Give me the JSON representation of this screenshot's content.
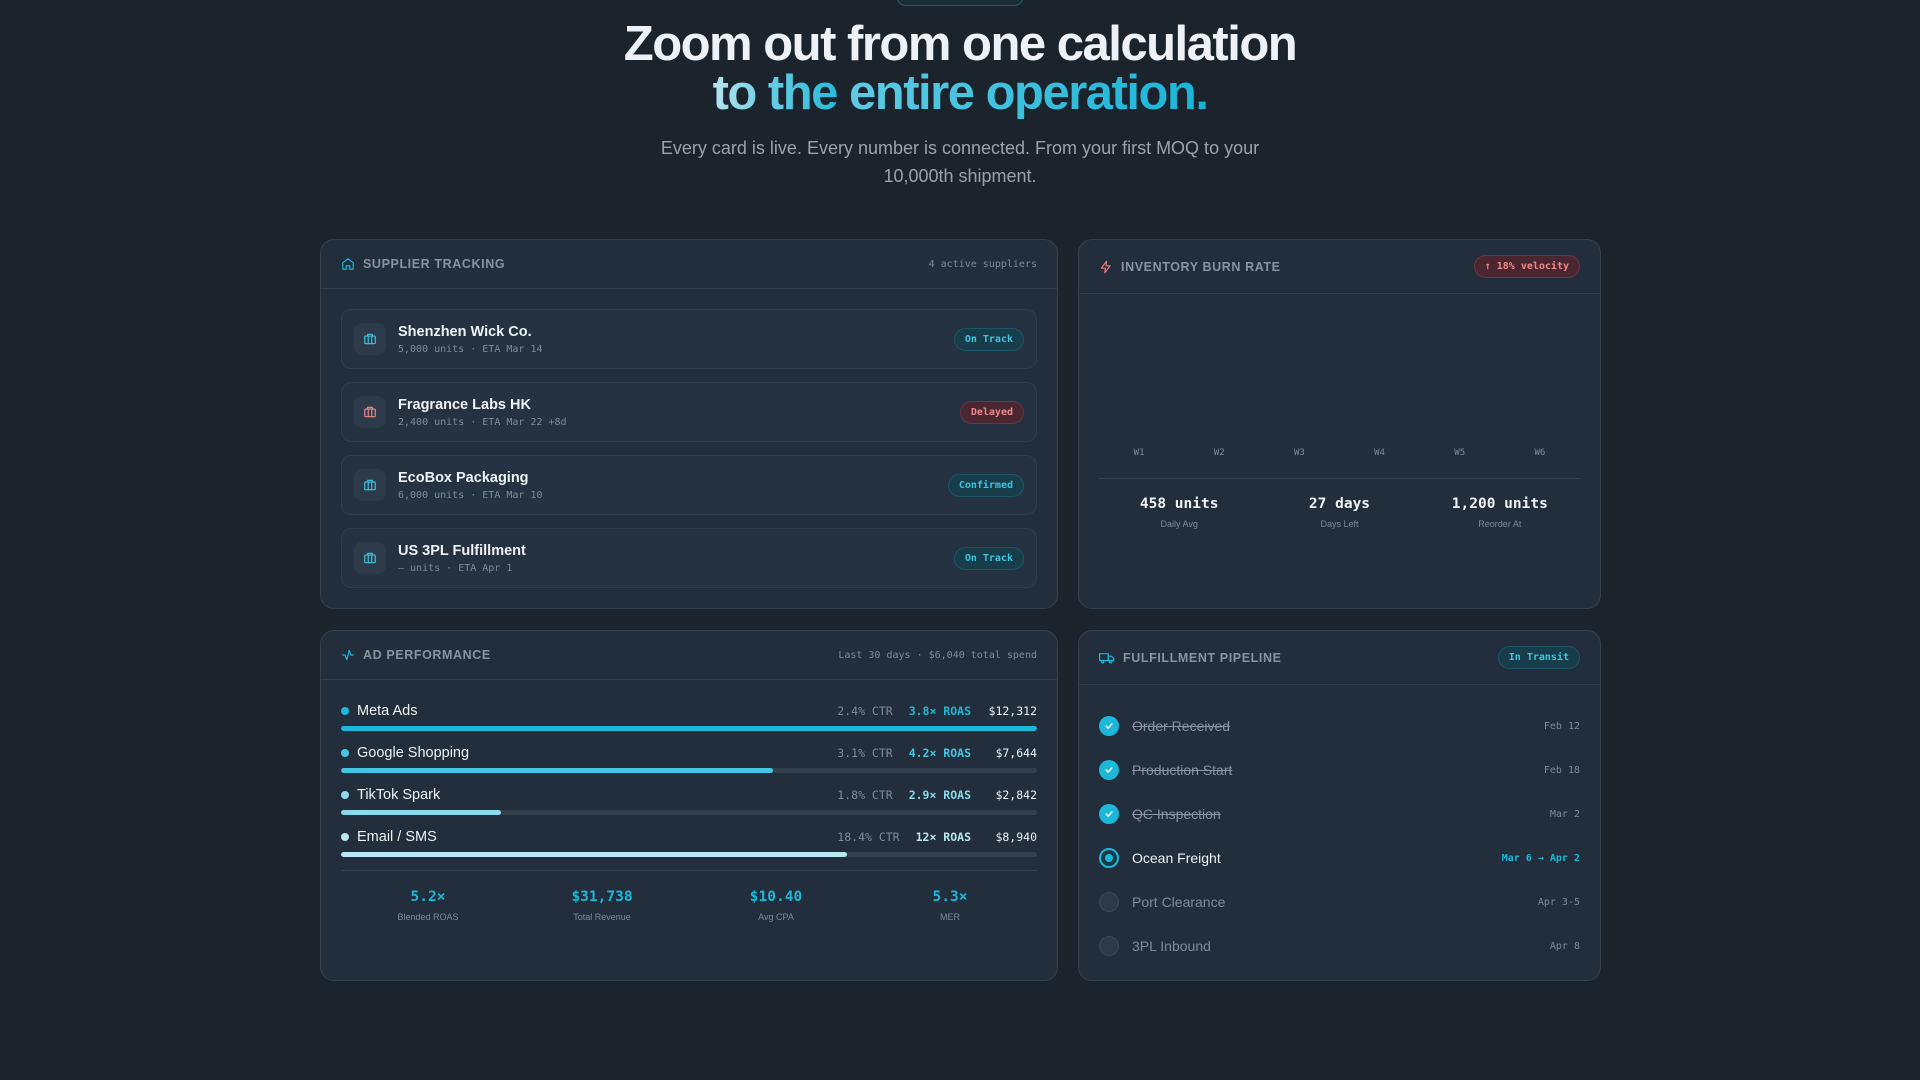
{
  "hero": {
    "title_line1": "Zoom out from one calculation",
    "title_line2_prefix": "to the ",
    "title_line2_highlight": "entire operation.",
    "subtitle": "Every card is live. Every number is connected. From your first MOQ to your 10,000th shipment."
  },
  "supplier": {
    "title": "SUPPLIER TRACKING",
    "meta": "4 active suppliers",
    "icon": "home-icon",
    "rows": [
      {
        "name": "Shenzhen Wick Co.",
        "sub": "5,000 units · ETA Mar 14",
        "status": "On Track",
        "tone": "teal",
        "icon_color": "#3ec5e2"
      },
      {
        "name": "Fragrance Labs HK",
        "sub": "2,400 units · ETA Mar 22 +8d",
        "status": "Delayed",
        "tone": "red",
        "icon_color": "#f08a8a"
      },
      {
        "name": "EcoBox Packaging",
        "sub": "6,000 units · ETA Mar 10",
        "status": "Confirmed",
        "tone": "teal",
        "icon_color": "#3ec5e2"
      },
      {
        "name": "US 3PL Fulfillment",
        "sub": "— units · ETA Apr 1",
        "status": "On Track",
        "tone": "teal",
        "icon_color": "#3ec5e2"
      }
    ]
  },
  "inventory": {
    "title": "INVENTORY BURN RATE",
    "badge": "↑ 18% velocity",
    "icon": "bolt-icon",
    "weeks": [
      "W1",
      "W2",
      "W3",
      "W4",
      "W5",
      "W6"
    ],
    "stats": [
      {
        "value": "458 units",
        "label": "Daily Avg"
      },
      {
        "value": "27 days",
        "label": "Days Left"
      },
      {
        "value": "1,200 units",
        "label": "Reorder At"
      }
    ]
  },
  "ads": {
    "title": "AD PERFORMANCE",
    "meta": "Last 30 days · $6,040 total spend",
    "icon": "activity-icon",
    "channels": [
      {
        "name": "Meta Ads",
        "ctr": "2.4% CTR",
        "roas": "3.8× ROAS",
        "spend": "$12,312",
        "fill": 1.0,
        "color": "#1bb8da"
      },
      {
        "name": "Google Shopping",
        "ctr": "3.1% CTR",
        "roas": "4.2× ROAS",
        "spend": "$7,644",
        "fill": 0.62,
        "color": "#45c6e2"
      },
      {
        "name": "TikTok Spark",
        "ctr": "1.8% CTR",
        "roas": "2.9× ROAS",
        "spend": "$2,842",
        "fill": 0.23,
        "color": "#8ddaec"
      },
      {
        "name": "Email / SMS",
        "ctr": "18.4% CTR",
        "roas": "12× ROAS",
        "spend": "$8,940",
        "fill": 0.727,
        "color": "#b9e8f3"
      }
    ],
    "summary": [
      {
        "value": "5.2×",
        "label": "Blended ROAS"
      },
      {
        "value": "$31,738",
        "label": "Total Revenue"
      },
      {
        "value": "$10.40",
        "label": "Avg CPA"
      },
      {
        "value": "5.3×",
        "label": "MER"
      }
    ]
  },
  "pipeline": {
    "title": "FULFILLMENT PIPELINE",
    "badge": "In Transit",
    "icon": "truck-icon",
    "steps": [
      {
        "name": "Order Received",
        "date": "Feb 12",
        "state": "done"
      },
      {
        "name": "Production Start",
        "date": "Feb 18",
        "state": "done"
      },
      {
        "name": "QC Inspection",
        "date": "Mar 2",
        "state": "done"
      },
      {
        "name": "Ocean Freight",
        "date": "Mar 6 → Apr 2",
        "state": "active"
      },
      {
        "name": "Port Clearance",
        "date": "Apr 3-5",
        "state": "todo"
      },
      {
        "name": "3PL Inbound",
        "date": "Apr 8",
        "state": "todo"
      }
    ]
  }
}
